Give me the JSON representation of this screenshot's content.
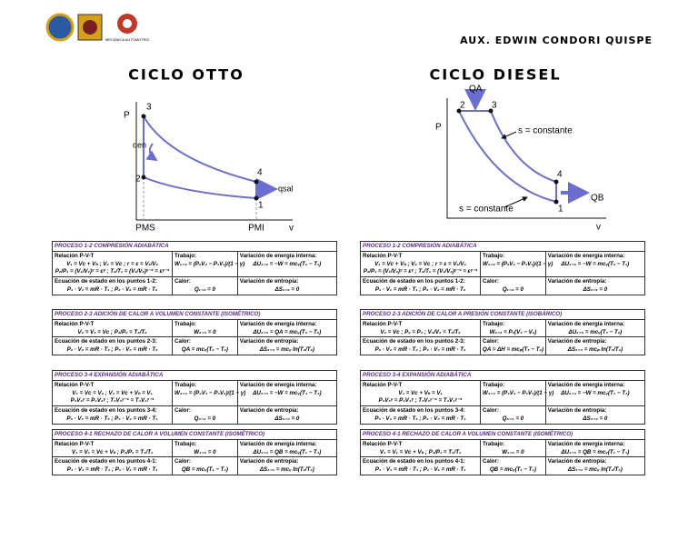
{
  "header": {
    "author": "AUX. EDWIN CONDORI QUISPE",
    "logo_text": "MECÁNICA AUTOMOTRIZ"
  },
  "otto": {
    "title": "CICLO OTTO",
    "diagram": {
      "p": "P",
      "v": "v",
      "p3": "3",
      "p2": "2",
      "p4": "4",
      "p1": "1",
      "q_in": "qen",
      "q_out": "qsal",
      "pms": "PMS",
      "pmi": "PMI"
    },
    "tables": [
      {
        "title": "PROCESO 1-2 COMPRESIÓN ADIABÁTICA",
        "rows": [
          [
            {
              "label": "Relación P-V-T",
              "lines": [
                "V₁ = Vc + Vₕ ; V₂ = Vc ; r = ε = V₁/V₂",
                "P₂/P₁ = (V₁/V₂)ᵞ = εᵞ ; T₂/T₁ = (V₁/V₂)ᵞ⁻¹ = εᵞ⁻¹"
              ]
            },
            {
              "label": "Trabajo:",
              "lines": [
                "W₁₋₂ = (P₂V₂ − P₁V₁)/(1 − γ)"
              ]
            },
            {
              "label": "Variación de energía interna:",
              "lines": [
                "ΔU₁₋₂ = −W = mcᵥ(T₂ − T₁)"
              ]
            }
          ],
          [
            {
              "label": "Ecuación de estado en los puntos 1-2:",
              "lines": [
                "P₁ · V₁ = mR · T₁ ; P₂ · V₂ = mR · T₂"
              ]
            },
            {
              "label": "Calor:",
              "lines": [
                "Q₁₋₂ = 0"
              ]
            },
            {
              "label": "Variación de entropía:",
              "lines": [
                "ΔS₁₋₂ = 0"
              ]
            }
          ]
        ]
      },
      {
        "title": "PROCESO 2-3 ADICIÓN DE CALOR A VOLUMEN CONSTANTE (ISOMÉTRICO)",
        "rows": [
          [
            {
              "label": "Relación P-V-T",
              "lines": [
                "V₂ = V₃ = Vc ; P₃/P₂ = T₃/T₂"
              ]
            },
            {
              "label": "Trabajo:",
              "lines": [
                "W₂₋₃ = 0"
              ]
            },
            {
              "label": "Variación de energía interna:",
              "lines": [
                "ΔU₂₋₃ = QA = mcᵥ(T₃ − T₂)"
              ]
            }
          ],
          [
            {
              "label": "Ecuación de estado en los puntos 2-3:",
              "lines": [
                "P₂ · V₂ = mR · T₂ ; P₃ · V₃ = mR · T₃"
              ]
            },
            {
              "label": "Calor:",
              "lines": [
                "QA = mcᵥ(T₃ − T₂)"
              ]
            },
            {
              "label": "Variación de entropía:",
              "lines": [
                "ΔS₂₋₃ = mcᵥ ln(T₃/T₂)"
              ]
            }
          ]
        ]
      },
      {
        "title": "PROCESO 3-4 EXPANSIÓN ADIABÁTICA",
        "rows": [
          [
            {
              "label": "Relación P-V-T",
              "lines": [
                "V₃ = Vc = V₂ ; V₄ = Vc + Vₕ = V₁",
                "P₃V₃ᵞ = P₄V₄ᵞ ; T₃V₃ᵞ⁻¹ = T₄V₄ᵞ⁻¹"
              ]
            },
            {
              "label": "Trabajo:",
              "lines": [
                "W₃₋₄ = (P₄V₄ − P₃V₃)/(1 − γ)"
              ]
            },
            {
              "label": "Variación de energía interna:",
              "lines": [
                "ΔU₃₋₄ = −W = mcᵥ(T₄ − T₃)"
              ]
            }
          ],
          [
            {
              "label": "Ecuación de estado en los puntos 3-4:",
              "lines": [
                "P₃ · V₃ = mR · T₃ ; P₄ · V₄ = mR · T₄"
              ]
            },
            {
              "label": "Calor:",
              "lines": [
                "Q₃₋₄ = 0"
              ]
            },
            {
              "label": "Variación de entropía:",
              "lines": [
                "ΔS₃₋₄ = 0"
              ]
            }
          ]
        ]
      },
      {
        "title": "PROCESO 4-1 RECHAZO DE CALOR A VOLUMEN CONSTANTE (ISOMÉTRICO)",
        "rows": [
          [
            {
              "label": "Relación P-V-T",
              "lines": [
                "V₄ = V₁ = Vc + Vₕ ; P₄/P₁ = T₄/T₁"
              ]
            },
            {
              "label": "Trabajo:",
              "lines": [
                "W₄₋₁ = 0"
              ]
            },
            {
              "label": "Variación de energía interna:",
              "lines": [
                "ΔU₄₋₁ = QB = mcᵥ(T₁ − T₄)"
              ]
            }
          ],
          [
            {
              "label": "Ecuación de estado en los puntos 4-1:",
              "lines": [
                "P₄ · V₄ = mR · T₄ ; P₁ · V₁ = mR · T₁"
              ]
            },
            {
              "label": "Calor:",
              "lines": [
                "QB = mcᵥ(T₁ − T₄)"
              ]
            },
            {
              "label": "Variación de entropía:",
              "lines": [
                "ΔS₄₋₁ = mcᵥ ln(T₁/T₄)"
              ]
            }
          ]
        ]
      }
    ]
  },
  "diesel": {
    "title": "CICLO DIESEL",
    "diagram": {
      "p": "P",
      "v": "v",
      "p2": "2",
      "p3": "3",
      "p4": "4",
      "p1": "1",
      "q_in": "QA",
      "q_out": "QB",
      "s_top": "s = constante",
      "s_bottom": "s = constante"
    },
    "tables": [
      {
        "title": "PROCESO 1-2 COMPRESIÓN ADIABÁTICA",
        "rows": [
          [
            {
              "label": "Relación P-V-T",
              "lines": [
                "V₁ = Vc + Vₕ ; V₂ = Vc ; r = ε = V₁/V₂",
                "P₂/P₁ = (V₁/V₂)ᵞ = εᵞ ; T₂/T₁ = (V₁/V₂)ᵞ⁻¹ = εᵞ⁻¹"
              ]
            },
            {
              "label": "Trabajo:",
              "lines": [
                "W₁₋₂ = (P₂V₂ − P₁V₁)/(1 − γ)"
              ]
            },
            {
              "label": "Variación de energía interna:",
              "lines": [
                "ΔU₁₋₂ = −W = mcᵥ(T₂ − T₁)"
              ]
            }
          ],
          [
            {
              "label": "Ecuación de estado en los puntos 1-2:",
              "lines": [
                "P₁ · V₁ = mR · T₁ ; P₂ · V₂ = mR · T₂"
              ]
            },
            {
              "label": "Calor:",
              "lines": [
                "Q₁₋₂ = 0"
              ]
            },
            {
              "label": "Variación de entropía:",
              "lines": [
                "ΔS₁₋₂ = 0"
              ]
            }
          ]
        ]
      },
      {
        "title": "PROCESO 2-3 ADICIÓN DE CALOR A PRESIÓN CONSTANTE (ISOBÁRICO)",
        "rows": [
          [
            {
              "label": "Relación P-V-T",
              "lines": [
                "V₂ = Vc ; P₂ = P₃ ; V₃/V₂ = T₃/T₂"
              ]
            },
            {
              "label": "Trabajo:",
              "lines": [
                "W₂₋₃ = P₂(V₃ − V₂)"
              ]
            },
            {
              "label": "Variación de energía interna:",
              "lines": [
                "ΔU₂₋₃ = mcᵥ(T₃ − T₂)"
              ]
            }
          ],
          [
            {
              "label": "Ecuación de estado en los puntos 2-3:",
              "lines": [
                "P₂ · V₂ = mR · T₂ ; P₃ · V₃ = mR · T₃"
              ]
            },
            {
              "label": "Calor:",
              "lines": [
                "QA = ΔH = mcₚ(T₃ − T₂)"
              ]
            },
            {
              "label": "Variación de entropía:",
              "lines": [
                "ΔS₂₋₃ = mcₚ ln(T₃/T₂)"
              ]
            }
          ]
        ]
      },
      {
        "title": "PROCESO 3-4 EXPANSIÓN ADIABÁTICA",
        "rows": [
          [
            {
              "label": "Relación P-V-T",
              "lines": [
                "V₄ = Vc + Vₕ = V₁",
                "P₃V₃ᵞ = P₄V₄ᵞ ; T₃V₃ᵞ⁻¹ = T₄V₄ᵞ⁻¹"
              ]
            },
            {
              "label": "Trabajo:",
              "lines": [
                "W₃₋₄ = (P₄V₄ − P₃V₃)/(1 − γ)"
              ]
            },
            {
              "label": "Variación de energía interna:",
              "lines": [
                "ΔU₃₋₄ = −W = mcᵥ(T₄ − T₃)"
              ]
            }
          ],
          [
            {
              "label": "Ecuación de estado en los puntos 3-4:",
              "lines": [
                "P₃ · V₃ = mR · T₃ ; P₄ · V₄ = mR · T₄"
              ]
            },
            {
              "label": "Calor:",
              "lines": [
                "Q₃₋₄ = 0"
              ]
            },
            {
              "label": "Variación de entropía:",
              "lines": [
                "ΔS₃₋₄ = 0"
              ]
            }
          ]
        ]
      },
      {
        "title": "PROCESO 4-1 RECHAZO DE CALOR A VOLUMEN CONSTANTE (ISOMÉTRICO)",
        "rows": [
          [
            {
              "label": "Relación P-V-T",
              "lines": [
                "V₄ = V₁ = Vc + Vₕ ; P₄/P₁ = T₄/T₁"
              ]
            },
            {
              "label": "Trabajo:",
              "lines": [
                "W₄₋₁ = 0"
              ]
            },
            {
              "label": "Variación de energía interna:",
              "lines": [
                "ΔU₄₋₁ = QB = mcᵥ(T₁ − T₄)"
              ]
            }
          ],
          [
            {
              "label": "Ecuación de estado en los puntos 4-1:",
              "lines": [
                "P₄ · V₄ = mR · T₄ ; P₁ · V₁ = mR · T₁"
              ]
            },
            {
              "label": "Calor:",
              "lines": [
                "QB = mcᵥ(T₁ − T₄)"
              ]
            },
            {
              "label": "Variación de entropía:",
              "lines": [
                "ΔS₄₋₁ = mcᵥ ln(T₁/T₄)"
              ]
            }
          ]
        ]
      }
    ]
  }
}
